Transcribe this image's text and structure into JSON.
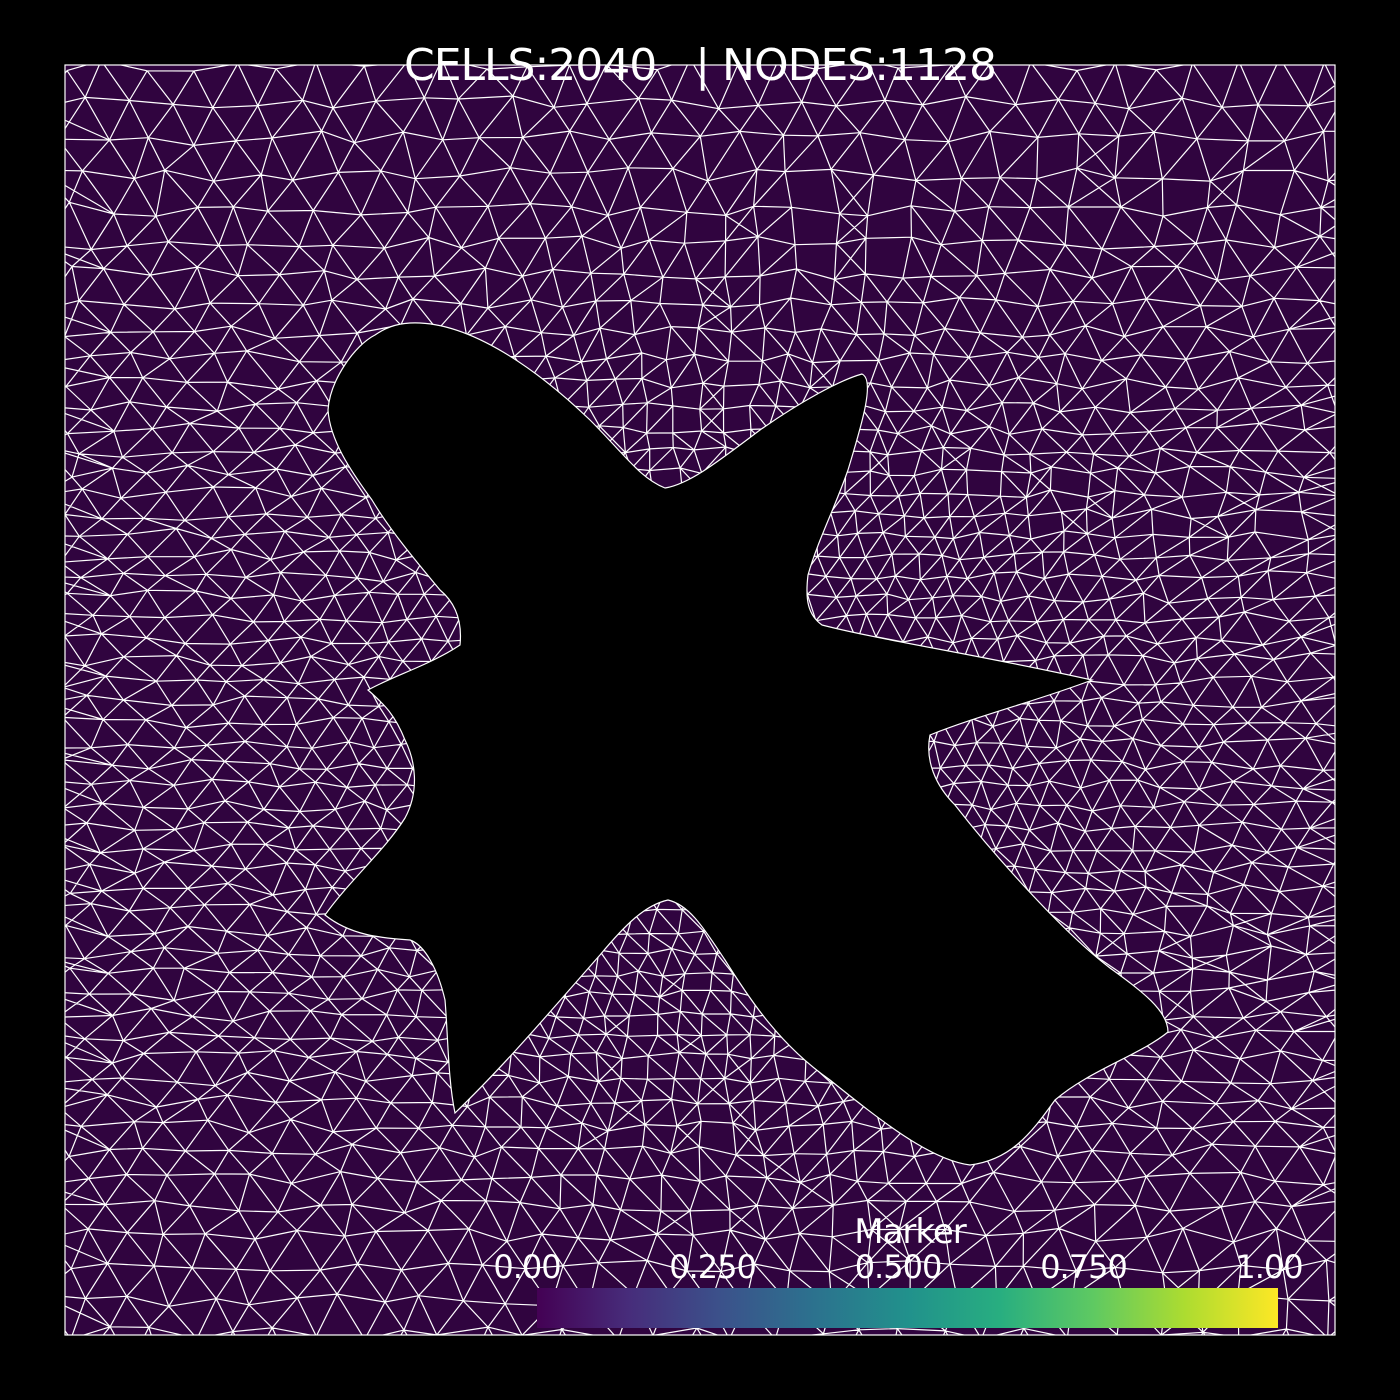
{
  "header": {
    "stats_text": "CELLS:2040   | NODES:1128"
  },
  "mesh": {
    "cells": 2040,
    "nodes": 1128,
    "fill_color": "#30043f",
    "edge_color": "#ffffff",
    "background_color": "#000000",
    "cell_marker_value": 0.0
  },
  "colorbar": {
    "title": "Marker",
    "colormap": "viridis",
    "range": [
      0,
      1
    ],
    "ticks": [
      {
        "label": "0.00",
        "value": 0.0
      },
      {
        "label": "0.250",
        "value": 0.25
      },
      {
        "label": "0.500",
        "value": 0.5
      },
      {
        "label": "0.750",
        "value": 0.75
      },
      {
        "label": "1.00",
        "value": 1.0
      }
    ],
    "colors": [
      "#440154",
      "#3b528b",
      "#21918c",
      "#5ec962",
      "#fde725"
    ]
  }
}
